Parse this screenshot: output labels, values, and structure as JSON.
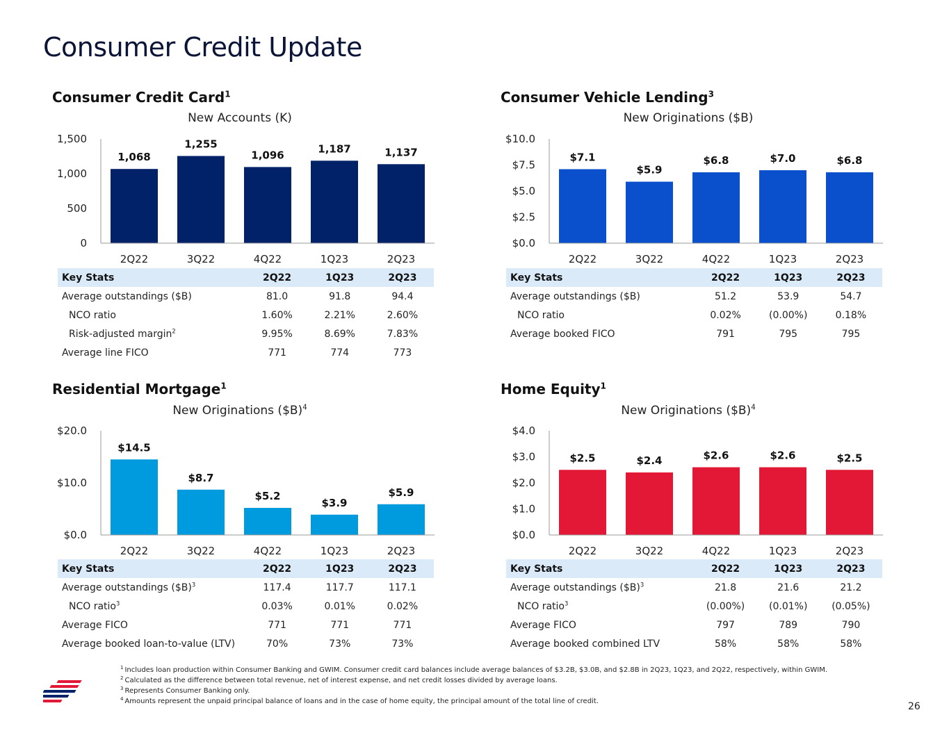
{
  "page": {
    "title": "Consumer Credit Update",
    "page_number": "26"
  },
  "colors": {
    "credit_card": "#012169",
    "vehicle": "#0a4fcc",
    "mortgage": "#009bde",
    "home_equity": "#e31837",
    "table_header": "#dbeaf8",
    "logo_red": "#e31837",
    "logo_blue": "#012169"
  },
  "panels": {
    "cc": {
      "title": "Consumer Credit Card",
      "title_sup": "1",
      "subtitle": "New Accounts (K)",
      "subtitle_sup": "",
      "table": {
        "headers": [
          "Key Stats",
          "2Q22",
          "1Q23",
          "2Q23"
        ],
        "rows": [
          {
            "label": "Average outstandings ($B)",
            "sup": "",
            "indent": false,
            "values": [
              "81.0",
              "91.8",
              "94.4"
            ]
          },
          {
            "label": "NCO ratio",
            "sup": "",
            "indent": true,
            "values": [
              "1.60%",
              "2.21%",
              "2.60%"
            ]
          },
          {
            "label": "Risk-adjusted margin",
            "sup": "2",
            "indent": true,
            "values": [
              "9.95%",
              "8.69%",
              "7.83%"
            ]
          },
          {
            "label": "Average line FICO",
            "sup": "",
            "indent": false,
            "values": [
              "771",
              "774",
              "773"
            ]
          }
        ]
      }
    },
    "vl": {
      "title": "Consumer Vehicle Lending",
      "title_sup": "3",
      "subtitle": "New Originations ($B)",
      "subtitle_sup": "",
      "table": {
        "headers": [
          "Key Stats",
          "2Q22",
          "1Q23",
          "2Q23"
        ],
        "rows": [
          {
            "label": "Average outstandings ($B)",
            "sup": "",
            "indent": false,
            "values": [
              "51.2",
              "53.9",
              "54.7"
            ]
          },
          {
            "label": "NCO ratio",
            "sup": "",
            "indent": true,
            "values": [
              "0.02%",
              "(0.00%)",
              "0.18%"
            ]
          },
          {
            "label": "Average booked FICO",
            "sup": "",
            "indent": false,
            "values": [
              "791",
              "795",
              "795"
            ]
          }
        ]
      }
    },
    "rm": {
      "title": "Residential Mortgage",
      "title_sup": "1",
      "subtitle": "New Originations ($B)",
      "subtitle_sup": "4",
      "table": {
        "headers": [
          "Key Stats",
          "2Q22",
          "1Q23",
          "2Q23"
        ],
        "rows": [
          {
            "label": "Average outstandings ($B)",
            "sup": "3",
            "indent": false,
            "values": [
              "117.4",
              "117.7",
              "117.1"
            ]
          },
          {
            "label": "NCO ratio",
            "sup": "3",
            "indent": true,
            "values": [
              "0.03%",
              "0.01%",
              "0.02%"
            ]
          },
          {
            "label": "Average FICO",
            "sup": "",
            "indent": false,
            "values": [
              "771",
              "771",
              "771"
            ]
          },
          {
            "label": "Average booked loan-to-value (LTV)",
            "sup": "",
            "indent": false,
            "values": [
              "70%",
              "73%",
              "73%"
            ]
          }
        ]
      }
    },
    "he": {
      "title": "Home Equity",
      "title_sup": "1",
      "subtitle": "New Originations ($B)",
      "subtitle_sup": "4",
      "table": {
        "headers": [
          "Key Stats",
          "2Q22",
          "1Q23",
          "2Q23"
        ],
        "rows": [
          {
            "label": "Average outstandings ($B)",
            "sup": "3",
            "indent": false,
            "values": [
              "21.8",
              "21.6",
              "21.2"
            ]
          },
          {
            "label": "NCO ratio",
            "sup": "3",
            "indent": true,
            "values": [
              "(0.00%)",
              "(0.01%)",
              "(0.05%)"
            ]
          },
          {
            "label": "Average FICO",
            "sup": "",
            "indent": false,
            "values": [
              "797",
              "789",
              "790"
            ]
          },
          {
            "label": "Average booked combined LTV",
            "sup": "",
            "indent": false,
            "values": [
              "58%",
              "58%",
              "58%"
            ]
          }
        ]
      }
    }
  },
  "chart_data": [
    {
      "id": "cc",
      "type": "bar",
      "title": "Consumer Credit Card",
      "subtitle": "New Accounts (K)",
      "xlabel": "",
      "ylabel": "",
      "categories": [
        "2Q22",
        "3Q22",
        "4Q22",
        "1Q23",
        "2Q23"
      ],
      "values": [
        1068,
        1255,
        1096,
        1187,
        1137
      ],
      "value_labels": [
        "1,068",
        "1,255",
        "1,096",
        "1,187",
        "1,137"
      ],
      "ylim": [
        0,
        1500
      ],
      "yticks": [
        0,
        500,
        1000,
        1500
      ],
      "ytick_labels": [
        "0",
        "500",
        "1,000",
        "1,500"
      ],
      "color": "#012169"
    },
    {
      "id": "vl",
      "type": "bar",
      "title": "Consumer Vehicle Lending",
      "subtitle": "New Originations ($B)",
      "xlabel": "",
      "ylabel": "",
      "categories": [
        "2Q22",
        "3Q22",
        "4Q22",
        "1Q23",
        "2Q23"
      ],
      "values": [
        7.1,
        5.9,
        6.8,
        7.0,
        6.8
      ],
      "value_labels": [
        "$7.1",
        "$5.9",
        "$6.8",
        "$7.0",
        "$6.8"
      ],
      "ylim": [
        0,
        10
      ],
      "yticks": [
        0,
        2.5,
        5,
        7.5,
        10
      ],
      "ytick_labels": [
        "$0.0",
        "$2.5",
        "$5.0",
        "$7.5",
        "$10.0"
      ],
      "color": "#0a4fcc"
    },
    {
      "id": "rm",
      "type": "bar",
      "title": "Residential Mortgage",
      "subtitle": "New Originations ($B)",
      "xlabel": "",
      "ylabel": "",
      "categories": [
        "2Q22",
        "3Q22",
        "4Q22",
        "1Q23",
        "2Q23"
      ],
      "values": [
        14.5,
        8.7,
        5.2,
        3.9,
        5.9
      ],
      "value_labels": [
        "$14.5",
        "$8.7",
        "$5.2",
        "$3.9",
        "$5.9"
      ],
      "ylim": [
        0,
        20
      ],
      "yticks": [
        0,
        10,
        20
      ],
      "ytick_labels": [
        "$0.0",
        "$10.0",
        "$20.0"
      ],
      "color": "#009bde"
    },
    {
      "id": "he",
      "type": "bar",
      "title": "Home Equity",
      "subtitle": "New Originations ($B)",
      "xlabel": "",
      "ylabel": "",
      "categories": [
        "2Q22",
        "3Q22",
        "4Q22",
        "1Q23",
        "2Q23"
      ],
      "values": [
        2.5,
        2.4,
        2.6,
        2.6,
        2.5
      ],
      "value_labels": [
        "$2.5",
        "$2.4",
        "$2.6",
        "$2.6",
        "$2.5"
      ],
      "ylim": [
        0,
        4
      ],
      "yticks": [
        0,
        1,
        2,
        3,
        4
      ],
      "ytick_labels": [
        "$0.0",
        "$1.0",
        "$2.0",
        "$3.0",
        "$4.0"
      ],
      "color": "#e31837"
    }
  ],
  "footnotes": [
    {
      "num": "1",
      "text": "Includes loan production within Consumer Banking and GWIM. Consumer credit card balances include average balances of $3.2B, $3.0B, and $2.8B in 2Q23, 1Q23, and 2Q22, respectively, within GWIM."
    },
    {
      "num": "2",
      "text": "Calculated as the difference between total revenue, net of interest expense, and net credit losses divided by average loans."
    },
    {
      "num": "3",
      "text": "Represents Consumer Banking only."
    },
    {
      "num": "4",
      "text": "Amounts represent the unpaid principal balance of loans and in the case of home equity, the principal amount of the total line of credit."
    }
  ]
}
